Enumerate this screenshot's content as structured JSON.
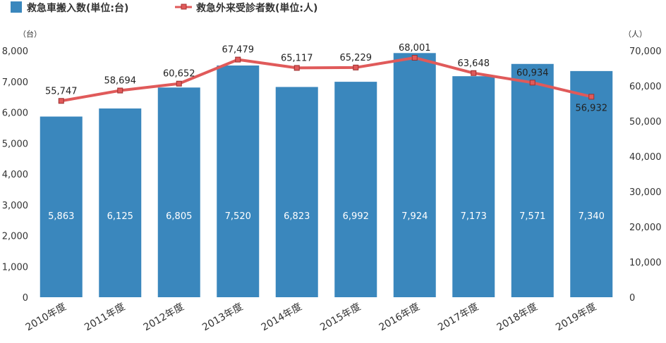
{
  "chart_data": {
    "type": "bar",
    "categories": [
      "2010年度",
      "2011年度",
      "2012年度",
      "2013年度",
      "2014年度",
      "2015年度",
      "2016年度",
      "2017年度",
      "2018年度",
      "2019年度"
    ],
    "series": [
      {
        "name": "救急車搬入数(単位:台)",
        "type": "bar",
        "axis": "left",
        "color": "#3a87bd",
        "values": [
          5863,
          6125,
          6805,
          7520,
          6823,
          6992,
          7924,
          7173,
          7571,
          7340
        ],
        "labels": [
          "5,863",
          "6,125",
          "6,805",
          "7,520",
          "6,823",
          "6,992",
          "7,924",
          "7,173",
          "7,571",
          "7,340"
        ]
      },
      {
        "name": "救急外来受診者数(単位:人)",
        "type": "line",
        "axis": "right",
        "color": "#e05a5a",
        "values": [
          55747,
          58694,
          60652,
          67479,
          65117,
          65229,
          68001,
          63648,
          60934,
          56932
        ],
        "labels": [
          "55,747",
          "58,694",
          "60,652",
          "67,479",
          "65,117",
          "65,229",
          "68,001",
          "63,648",
          "60,934",
          "56,932"
        ]
      }
    ],
    "left_axis": {
      "unit": "（台）",
      "ylim": [
        0,
        8000
      ],
      "ticks": [
        0,
        1000,
        2000,
        3000,
        4000,
        5000,
        6000,
        7000,
        8000
      ],
      "tick_labels": [
        "0",
        "1,000",
        "2,000",
        "3,000",
        "4,000",
        "5,000",
        "6,000",
        "7,000",
        "8,000"
      ]
    },
    "right_axis": {
      "unit": "（人）",
      "ylim": [
        0,
        70000
      ],
      "ticks": [
        0,
        10000,
        20000,
        30000,
        40000,
        50000,
        60000,
        70000
      ],
      "tick_labels": [
        "0",
        "10,000",
        "20,000",
        "30,000",
        "40,000",
        "50,000",
        "60,000",
        "70,000"
      ]
    },
    "legend_position": "top-left",
    "grid": false
  }
}
